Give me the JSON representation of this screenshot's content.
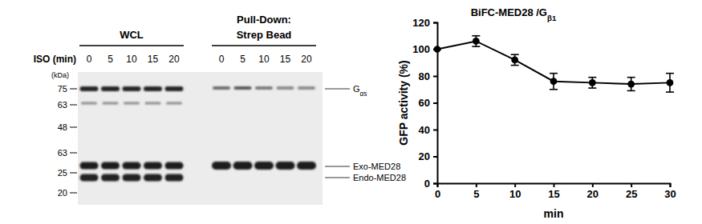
{
  "blot": {
    "lane_axis_label": "ISO (min)",
    "size_unit_label": "(kDa)",
    "groups": [
      {
        "label_lines": [
          "WCL"
        ],
        "lanes": [
          0,
          5,
          10,
          15,
          20
        ]
      },
      {
        "label_lines": [
          "Pull-Down:",
          "Strep Bead"
        ],
        "lanes": [
          0,
          5,
          10,
          15,
          20
        ]
      }
    ],
    "size_markers": [
      75,
      63,
      48,
      63,
      25,
      20
    ],
    "band_labels": [
      "Gαs",
      "Exo-MED28",
      "Endo-MED28"
    ]
  },
  "chart_data": {
    "type": "line",
    "title": "BiFC-MED28 /Gβ1",
    "x_label": "min",
    "y_label": "GFP activity (%)",
    "x": [
      0,
      5,
      10,
      15,
      20,
      25,
      30
    ],
    "values": [
      100,
      106,
      92,
      76,
      75,
      74,
      75
    ],
    "errors": [
      0,
      4,
      4,
      6,
      4,
      5,
      7
    ],
    "color": "#000000",
    "marker": "circle",
    "xlim": [
      0,
      30
    ],
    "xticks": [
      0,
      5,
      10,
      15,
      20,
      25,
      30
    ],
    "ylim": [
      0,
      120
    ],
    "yticks": [
      0,
      20,
      40,
      60,
      80,
      100,
      120
    ]
  }
}
